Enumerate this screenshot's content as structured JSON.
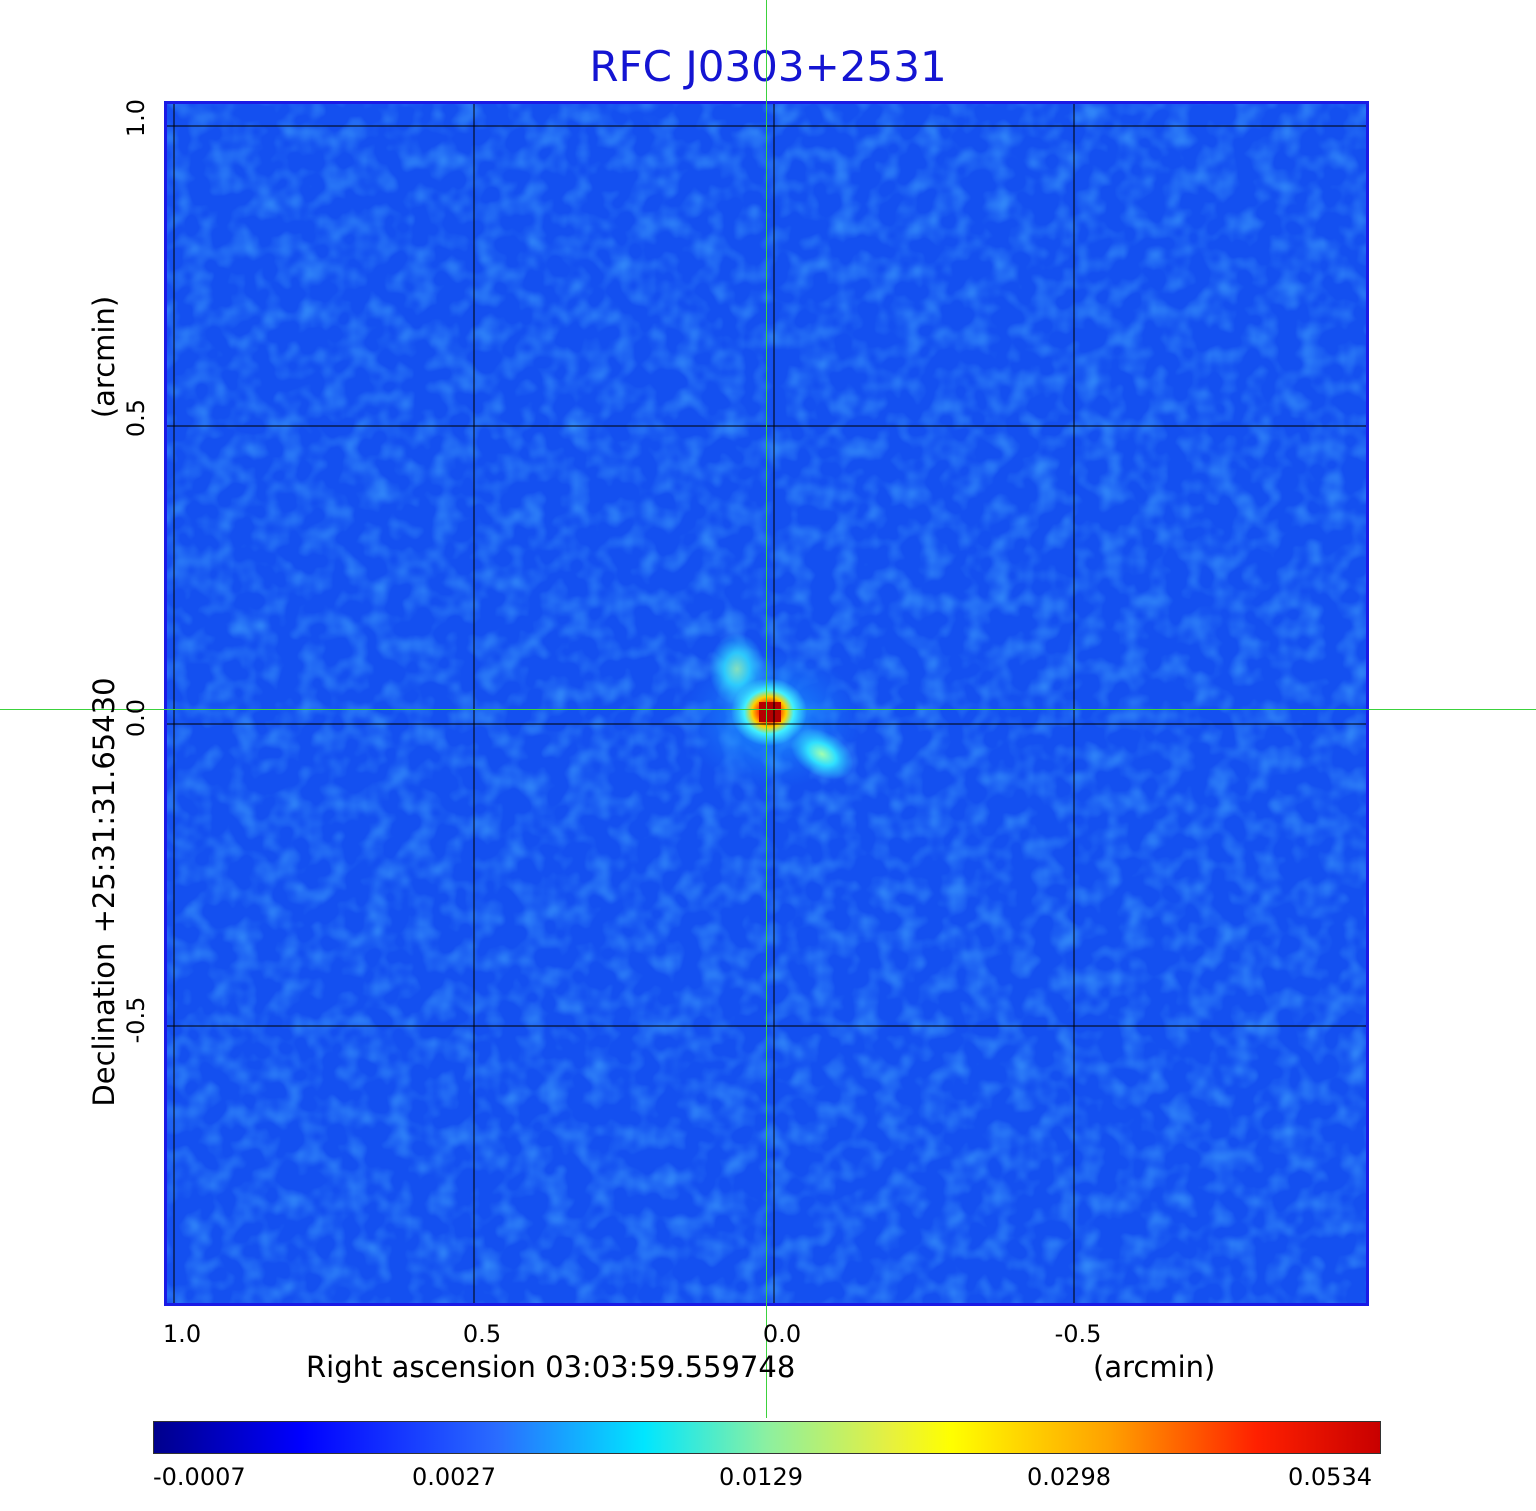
{
  "title": "RFC J0303+2531",
  "x_axis": {
    "label": "Right ascension  03:03:59.559748",
    "unit": "(arcmin)",
    "ticks": [
      "1.0",
      "0.5",
      "0.0",
      "-0.5"
    ]
  },
  "y_axis": {
    "label": "Declination  +25:31:31.65430",
    "unit": "(arcmin)",
    "ticks": [
      "1.0",
      "0.5",
      "0.0",
      "-0.5"
    ]
  },
  "colorbar": {
    "ticks": [
      "-0.0007",
      "0.0027",
      "0.0129",
      "0.0298",
      "0.0534"
    ]
  },
  "colors": {
    "title": "#1414d2",
    "background_map": "#1450f0",
    "crosshair": "#3cd23c",
    "grid": "#000000"
  }
}
